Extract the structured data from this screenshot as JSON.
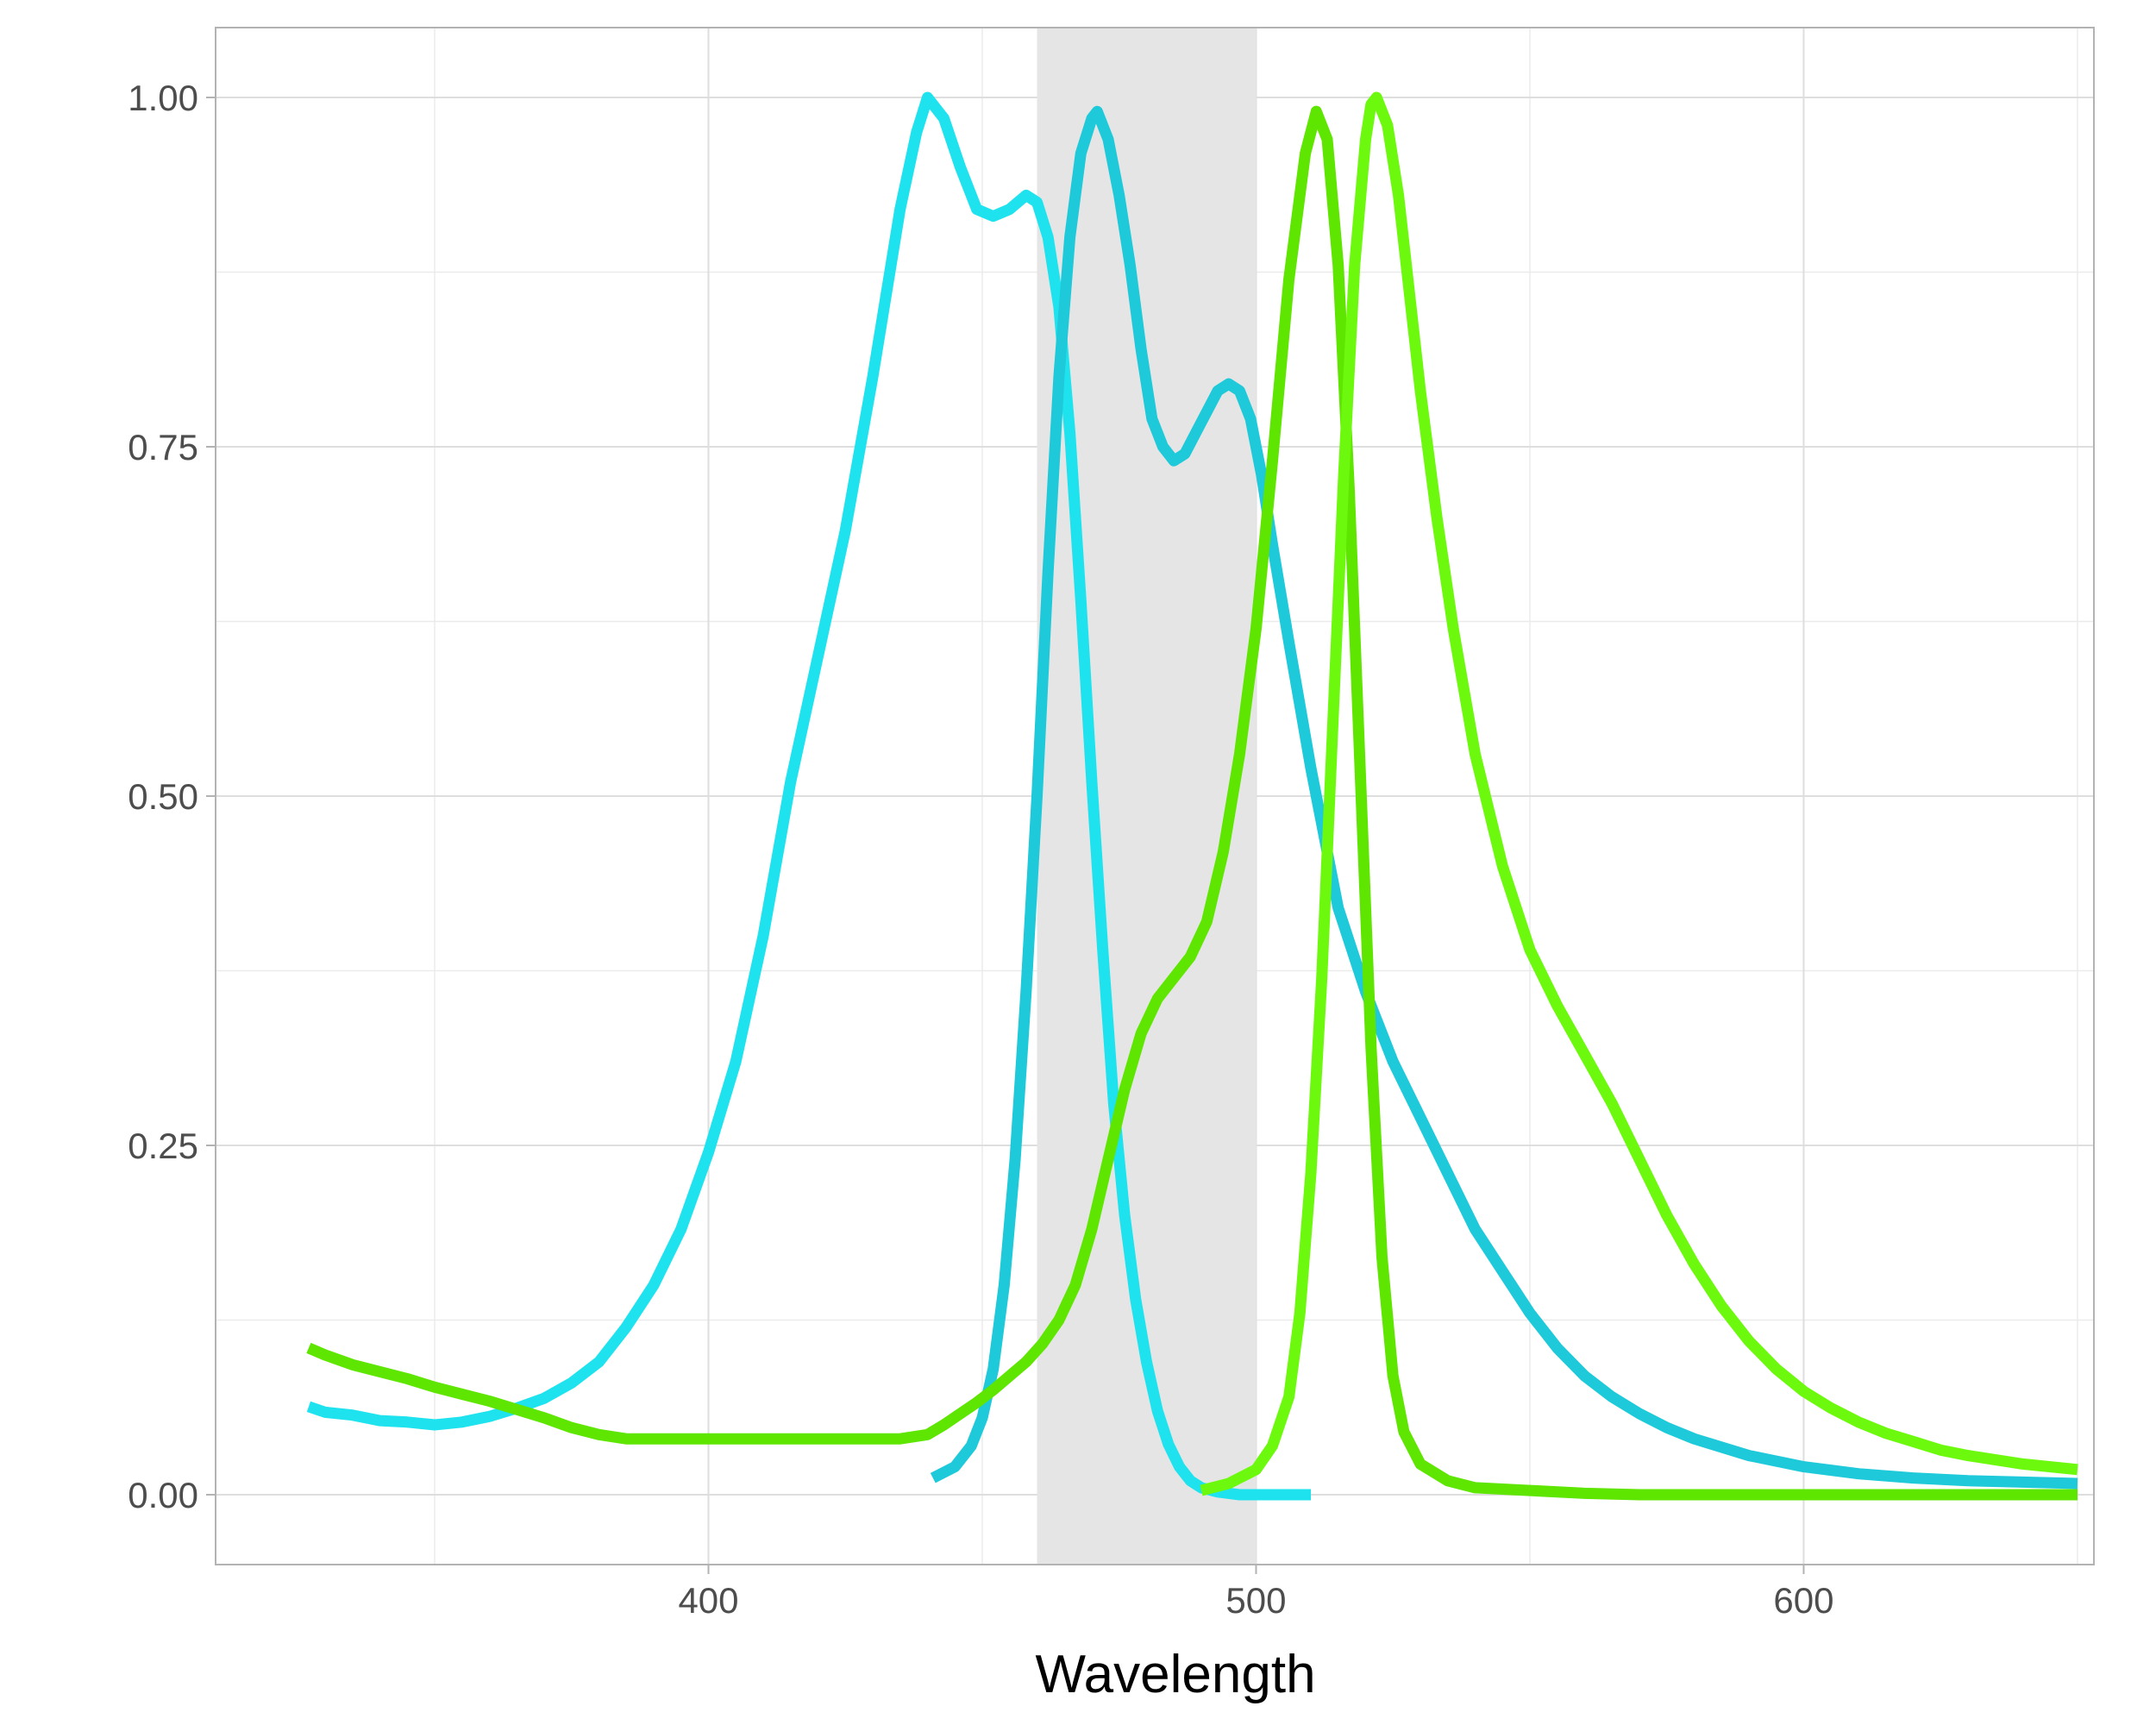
{
  "chart_data": {
    "type": "line",
    "title": "",
    "xlabel": "Wavelength",
    "ylabel": "",
    "xlim": [
      310,
      653
    ],
    "ylim": [
      -0.05,
      1.05
    ],
    "grid": true,
    "legend": "none",
    "x_ticks": [
      {
        "value": 400,
        "label": "400"
      },
      {
        "value": 500,
        "label": "500"
      },
      {
        "value": 600,
        "label": "600"
      }
    ],
    "x_minor": [
      350,
      450,
      550,
      650
    ],
    "y_ticks": [
      {
        "value": 0,
        "label": "0.00"
      },
      {
        "value": 0.25,
        "label": "0.25"
      },
      {
        "value": 0.5,
        "label": "0.50"
      },
      {
        "value": 0.75,
        "label": "0.75"
      },
      {
        "value": 1,
        "label": "1.00"
      }
    ],
    "y_minor": [
      0.125,
      0.375,
      0.625,
      0.875
    ],
    "band": {
      "x": [
        460,
        500
      ],
      "color": "#e5e5e5"
    },
    "series": [
      {
        "color": "#1ee3ee",
        "points": [
          [
            327,
            0.063
          ],
          [
            330,
            0.059
          ],
          [
            335,
            0.057
          ],
          [
            340,
            0.053
          ],
          [
            345,
            0.052
          ],
          [
            350,
            0.05
          ],
          [
            355,
            0.052
          ],
          [
            360,
            0.056
          ],
          [
            365,
            0.062
          ],
          [
            370,
            0.069
          ],
          [
            375,
            0.08
          ],
          [
            380,
            0.095
          ],
          [
            385,
            0.12
          ],
          [
            390,
            0.15
          ],
          [
            395,
            0.19
          ],
          [
            400,
            0.245
          ],
          [
            405,
            0.31
          ],
          [
            410,
            0.4
          ],
          [
            415,
            0.51
          ],
          [
            420,
            0.6
          ],
          [
            425,
            0.69
          ],
          [
            430,
            0.8
          ],
          [
            435,
            0.92
          ],
          [
            438,
            0.975
          ],
          [
            440,
            1.0
          ],
          [
            443,
            0.985
          ],
          [
            446,
            0.95
          ],
          [
            449,
            0.92
          ],
          [
            452,
            0.915
          ],
          [
            455,
            0.92
          ],
          [
            458,
            0.93
          ],
          [
            460,
            0.925
          ],
          [
            462,
            0.9
          ],
          [
            464,
            0.85
          ],
          [
            466,
            0.76
          ],
          [
            468,
            0.64
          ],
          [
            470,
            0.51
          ],
          [
            472,
            0.39
          ],
          [
            474,
            0.28
          ],
          [
            476,
            0.2
          ],
          [
            478,
            0.14
          ],
          [
            480,
            0.095
          ],
          [
            482,
            0.06
          ],
          [
            484,
            0.036
          ],
          [
            486,
            0.02
          ],
          [
            488,
            0.01
          ],
          [
            490,
            0.005
          ],
          [
            493,
            0.002
          ],
          [
            497,
            0.0
          ],
          [
            505,
            0.0
          ],
          [
            510,
            0.0
          ]
        ]
      },
      {
        "color": "#1ec9d9",
        "points": [
          [
            441,
            0.012
          ],
          [
            445,
            0.02
          ],
          [
            448,
            0.035
          ],
          [
            450,
            0.055
          ],
          [
            452,
            0.09
          ],
          [
            454,
            0.15
          ],
          [
            456,
            0.24
          ],
          [
            458,
            0.36
          ],
          [
            460,
            0.5
          ],
          [
            462,
            0.66
          ],
          [
            464,
            0.8
          ],
          [
            466,
            0.9
          ],
          [
            468,
            0.96
          ],
          [
            470,
            0.985
          ],
          [
            471,
            0.99
          ],
          [
            473,
            0.97
          ],
          [
            475,
            0.93
          ],
          [
            477,
            0.88
          ],
          [
            479,
            0.82
          ],
          [
            481,
            0.77
          ],
          [
            483,
            0.75
          ],
          [
            485,
            0.74
          ],
          [
            487,
            0.745
          ],
          [
            489,
            0.76
          ],
          [
            491,
            0.775
          ],
          [
            493,
            0.79
          ],
          [
            495,
            0.795
          ],
          [
            497,
            0.79
          ],
          [
            499,
            0.77
          ],
          [
            501,
            0.73
          ],
          [
            503,
            0.68
          ],
          [
            506,
            0.61
          ],
          [
            510,
            0.52
          ],
          [
            515,
            0.42
          ],
          [
            520,
            0.36
          ],
          [
            525,
            0.31
          ],
          [
            530,
            0.27
          ],
          [
            535,
            0.23
          ],
          [
            540,
            0.19
          ],
          [
            545,
            0.16
          ],
          [
            550,
            0.13
          ],
          [
            555,
            0.105
          ],
          [
            560,
            0.085
          ],
          [
            565,
            0.07
          ],
          [
            570,
            0.058
          ],
          [
            575,
            0.048
          ],
          [
            580,
            0.04
          ],
          [
            590,
            0.028
          ],
          [
            600,
            0.02
          ],
          [
            610,
            0.015
          ],
          [
            620,
            0.012
          ],
          [
            630,
            0.01
          ],
          [
            640,
            0.009
          ],
          [
            650,
            0.008
          ]
        ]
      },
      {
        "color": "#5ee500",
        "points": [
          [
            327,
            0.105
          ],
          [
            330,
            0.1
          ],
          [
            335,
            0.093
          ],
          [
            340,
            0.088
          ],
          [
            345,
            0.083
          ],
          [
            350,
            0.077
          ],
          [
            355,
            0.072
          ],
          [
            360,
            0.067
          ],
          [
            365,
            0.061
          ],
          [
            370,
            0.055
          ],
          [
            375,
            0.048
          ],
          [
            380,
            0.043
          ],
          [
            385,
            0.04
          ],
          [
            390,
            0.04
          ],
          [
            400,
            0.04
          ],
          [
            420,
            0.04
          ],
          [
            435,
            0.04
          ],
          [
            440,
            0.043
          ],
          [
            443,
            0.05
          ],
          [
            446,
            0.058
          ],
          [
            449,
            0.066
          ],
          [
            452,
            0.075
          ],
          [
            455,
            0.085
          ],
          [
            458,
            0.095
          ],
          [
            461,
            0.108
          ],
          [
            464,
            0.125
          ],
          [
            467,
            0.15
          ],
          [
            470,
            0.19
          ],
          [
            473,
            0.24
          ],
          [
            476,
            0.29
          ],
          [
            479,
            0.33
          ],
          [
            482,
            0.355
          ],
          [
            485,
            0.37
          ],
          [
            488,
            0.385
          ],
          [
            491,
            0.41
          ],
          [
            494,
            0.46
          ],
          [
            497,
            0.53
          ],
          [
            500,
            0.62
          ],
          [
            503,
            0.74
          ],
          [
            506,
            0.87
          ],
          [
            509,
            0.96
          ],
          [
            511,
            0.99
          ],
          [
            513,
            0.97
          ],
          [
            515,
            0.88
          ],
          [
            517,
            0.72
          ],
          [
            519,
            0.52
          ],
          [
            521,
            0.32
          ],
          [
            523,
            0.17
          ],
          [
            525,
            0.085
          ],
          [
            527,
            0.045
          ],
          [
            530,
            0.022
          ],
          [
            535,
            0.01
          ],
          [
            540,
            0.005
          ],
          [
            550,
            0.003
          ],
          [
            560,
            0.001
          ],
          [
            570,
            0.0
          ],
          [
            580,
            0.0
          ],
          [
            600,
            0.0
          ],
          [
            620,
            0.0
          ],
          [
            640,
            0.0
          ],
          [
            650,
            0.0
          ]
        ]
      },
      {
        "color": "#6cf90d",
        "points": [
          [
            490,
            0.003
          ],
          [
            495,
            0.008
          ],
          [
            500,
            0.018
          ],
          [
            503,
            0.035
          ],
          [
            506,
            0.07
          ],
          [
            508,
            0.13
          ],
          [
            510,
            0.23
          ],
          [
            512,
            0.37
          ],
          [
            514,
            0.55
          ],
          [
            516,
            0.73
          ],
          [
            518,
            0.88
          ],
          [
            520,
            0.97
          ],
          [
            521,
            0.995
          ],
          [
            522,
            1.0
          ],
          [
            524,
            0.98
          ],
          [
            526,
            0.93
          ],
          [
            528,
            0.86
          ],
          [
            530,
            0.79
          ],
          [
            533,
            0.7
          ],
          [
            536,
            0.62
          ],
          [
            540,
            0.53
          ],
          [
            545,
            0.45
          ],
          [
            550,
            0.39
          ],
          [
            555,
            0.35
          ],
          [
            560,
            0.315
          ],
          [
            565,
            0.28
          ],
          [
            570,
            0.24
          ],
          [
            575,
            0.2
          ],
          [
            580,
            0.165
          ],
          [
            585,
            0.135
          ],
          [
            590,
            0.11
          ],
          [
            595,
            0.09
          ],
          [
            600,
            0.074
          ],
          [
            605,
            0.062
          ],
          [
            610,
            0.052
          ],
          [
            615,
            0.044
          ],
          [
            620,
            0.038
          ],
          [
            625,
            0.032
          ],
          [
            630,
            0.028
          ],
          [
            640,
            0.022
          ],
          [
            650,
            0.018
          ]
        ]
      }
    ]
  }
}
